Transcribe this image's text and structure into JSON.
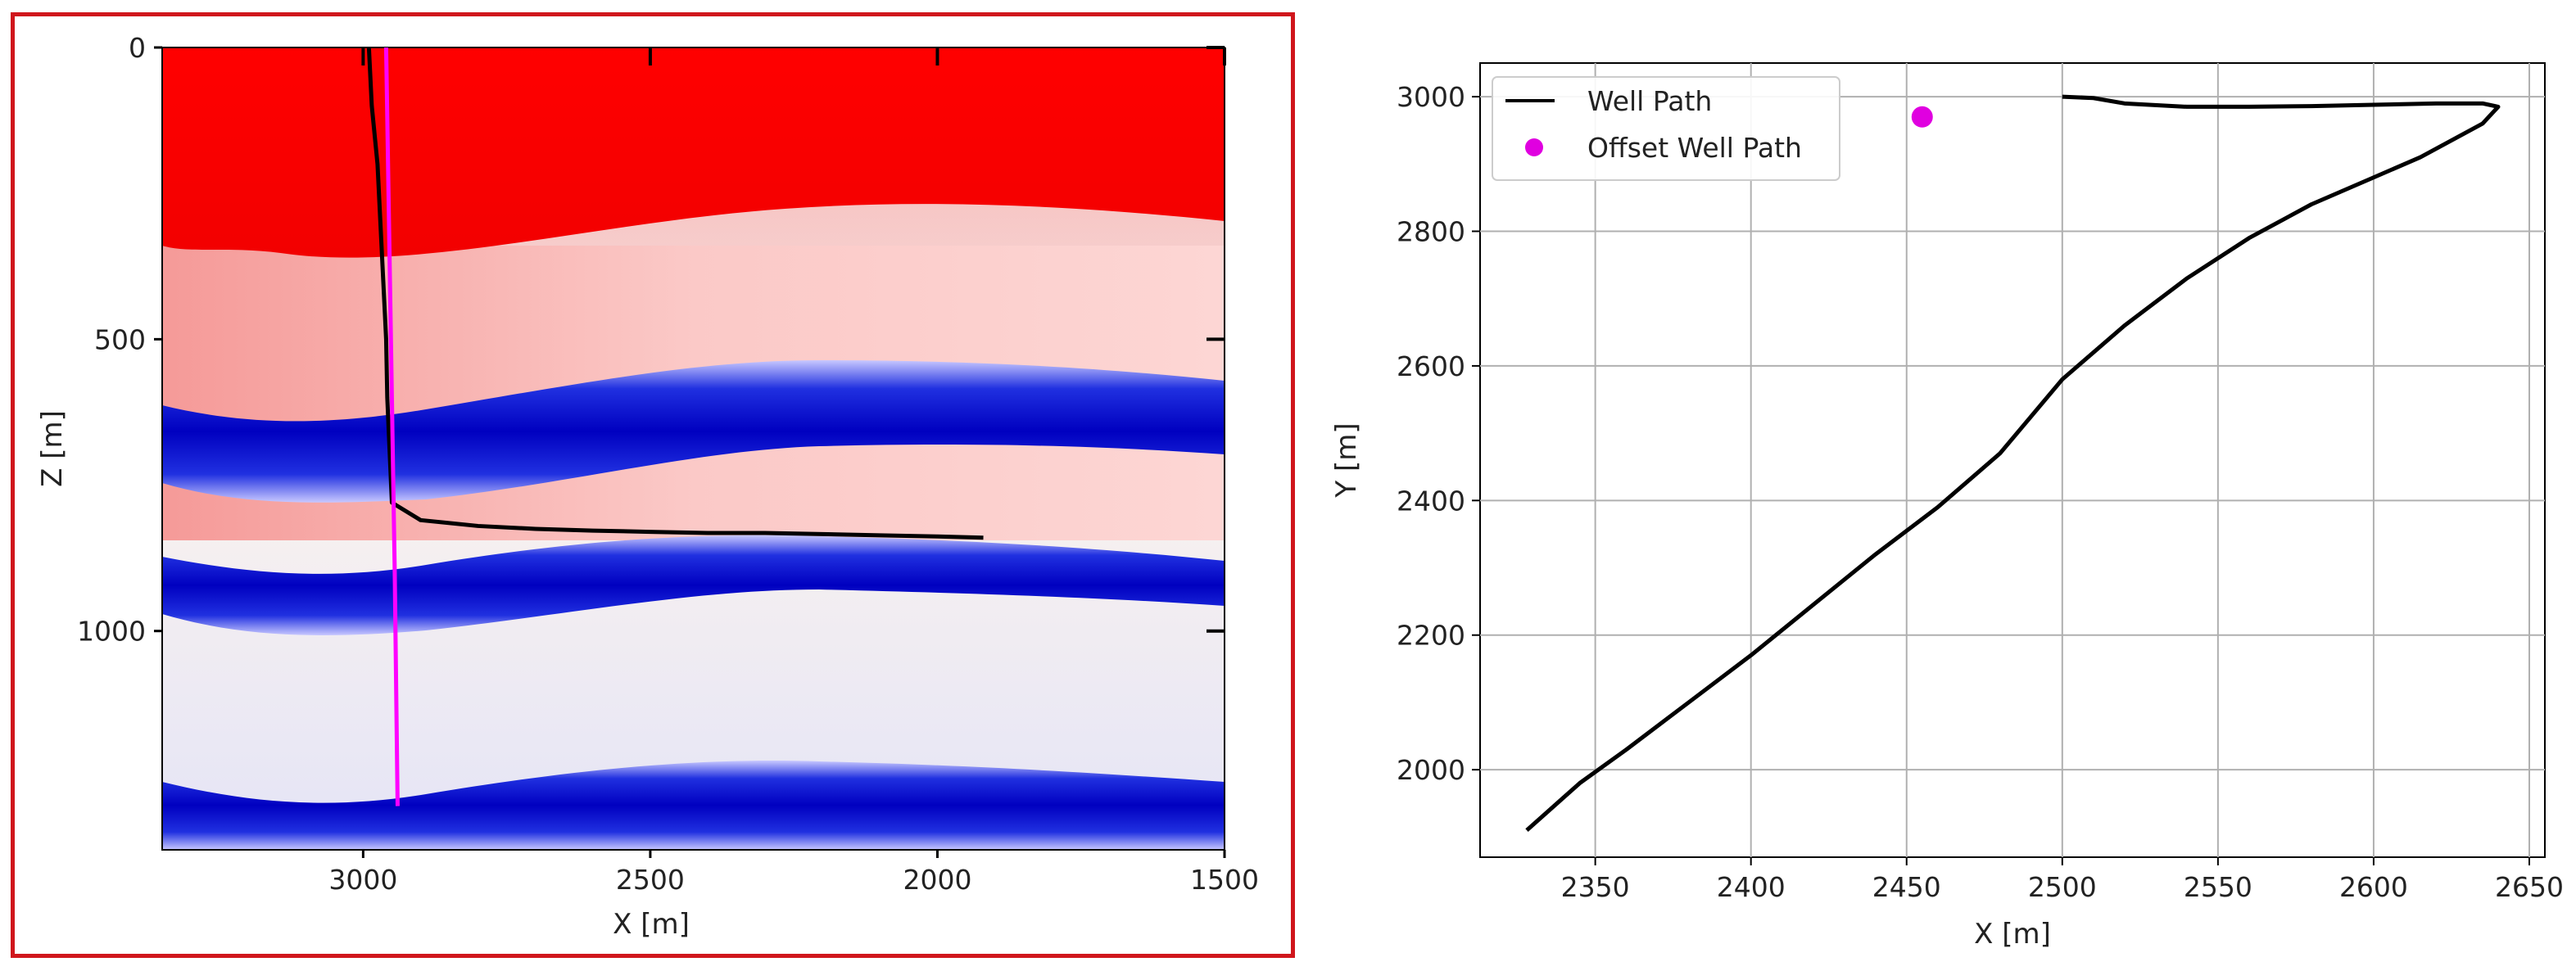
{
  "chart_data": [
    {
      "type": "heatmap",
      "title": "",
      "xlabel": "X [m]",
      "ylabel": "Z [m]",
      "xlim": [
        3350,
        1500
      ],
      "ylim": [
        1375,
        0
      ],
      "xticks": [
        3000,
        2500,
        2000,
        1500
      ],
      "yticks": [
        0,
        500,
        1000
      ],
      "grid": false,
      "colors": {
        "red": "#ff0000",
        "blue": "#0000ff",
        "well": "#000000",
        "offset": "#ff00ff"
      },
      "series": [
        {
          "kind": "well-section",
          "x": [
            2990,
            2985,
            2975,
            2970,
            2965,
            2960,
            2958,
            2950,
            2900,
            2800,
            2700,
            2600,
            2500,
            2400,
            2300,
            2200,
            2100,
            2000,
            1920
          ],
          "y": [
            0,
            100,
            200,
            300,
            400,
            500,
            600,
            780,
            810,
            820,
            825,
            828,
            830,
            832,
            832,
            834,
            836,
            838,
            840
          ]
        },
        {
          "kind": "offset-well",
          "x": [
            2960,
            2955,
            2950,
            2945,
            2940
          ],
          "y": [
            0,
            300,
            600,
            900,
            1300
          ]
        }
      ]
    },
    {
      "type": "line",
      "title": "",
      "xlabel": "X [m]",
      "ylabel": "Y [m]",
      "xlim": [
        2313,
        2655
      ],
      "ylim": [
        1870,
        3050
      ],
      "xticks": [
        2350,
        2400,
        2450,
        2500,
        2550,
        2600,
        2650
      ],
      "yticks": [
        2000,
        2200,
        2400,
        2600,
        2800,
        3000
      ],
      "grid": true,
      "legend_position": "top-left",
      "series": [
        {
          "name": "Well Path",
          "color": "#000000",
          "x": [
            2500,
            2510,
            2520,
            2540,
            2560,
            2580,
            2600,
            2620,
            2635,
            2640,
            2635,
            2615,
            2600,
            2580,
            2560,
            2540,
            2520,
            2500,
            2480,
            2460,
            2440,
            2420,
            2400,
            2380,
            2360,
            2345,
            2328
          ],
          "y": [
            3000,
            2998,
            2990,
            2985,
            2985,
            2986,
            2988,
            2990,
            2990,
            2985,
            2960,
            2910,
            2880,
            2840,
            2790,
            2730,
            2660,
            2580,
            2470,
            2390,
            2320,
            2245,
            2170,
            2100,
            2030,
            1980,
            1910
          ]
        },
        {
          "name": "Offset Well Path",
          "color": "#e000e0",
          "x": [
            2455
          ],
          "y": [
            2970
          ]
        }
      ]
    }
  ]
}
